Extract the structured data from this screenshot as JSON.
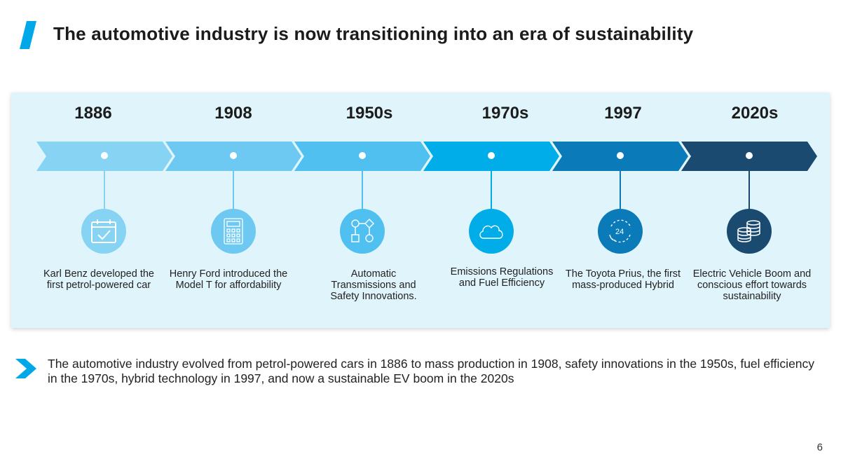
{
  "title": "The automotive industry is now transitioning into an era of sustainability",
  "colors": {
    "accent": "#00a8e8",
    "panel_bg": "#e0f4fb",
    "stage_colors": [
      "#86d3f4",
      "#6dc9f1",
      "#4fc0ef",
      "#00ade8",
      "#0a7ab8",
      "#1a4a70"
    ]
  },
  "milestones": [
    {
      "year": "1886",
      "icon": "calendar-check-icon",
      "description": "Karl Benz developed the first petrol-powered car"
    },
    {
      "year": "1908",
      "icon": "calculator-icon",
      "description": "Henry Ford introduced the Model T for affordability"
    },
    {
      "year": "1950s",
      "icon": "flowchart-icon",
      "description": "Automatic Transmissions and Safety Innovations."
    },
    {
      "year": "1970s",
      "icon": "cloud-icon",
      "description": "Emissions Regulations and Fuel Efficiency"
    },
    {
      "year": "1997",
      "icon": "24-hour-support-icon",
      "description": "The Toyota Prius, the first mass-produced Hybrid"
    },
    {
      "year": "2020s",
      "icon": "coin-stack-icon",
      "description": "Electric Vehicle Boom and conscious effort towards sustainability"
    }
  ],
  "summary": "The automotive industry evolved from petrol-powered cars in 1886 to mass production in 1908, safety innovations in the 1950s, fuel efficiency in the 1970s, hybrid technology in 1997, and now a sustainable EV boom in the 2020s",
  "page_number": "6"
}
